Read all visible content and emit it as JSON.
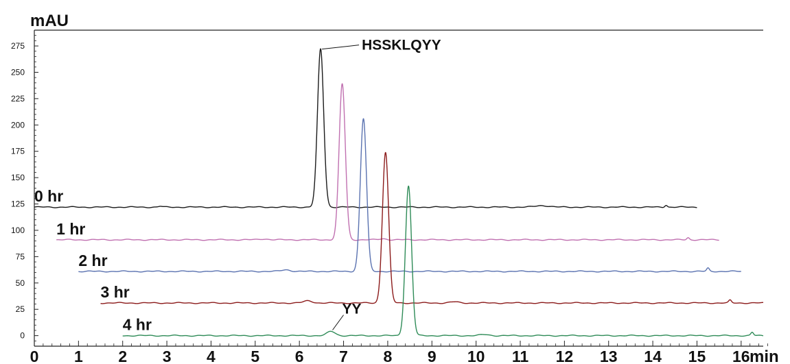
{
  "chart_data": {
    "type": "line",
    "ylabel": "mAU",
    "xlabel": "min",
    "xlim": [
      0,
      16.5
    ],
    "ylim": [
      -10,
      290
    ],
    "x_ticks": [
      0,
      1,
      2,
      3,
      4,
      5,
      6,
      7,
      8,
      9,
      10,
      11,
      12,
      13,
      14,
      15,
      16
    ],
    "y_ticks": [
      0,
      25,
      50,
      75,
      100,
      125,
      150,
      175,
      200,
      225,
      250,
      275
    ],
    "grid": false,
    "legend": "labels on series",
    "series": [
      {
        "name": "0 hr",
        "color": "#1a1a1a",
        "x_start": 0,
        "x_end": 15,
        "baseline": 122,
        "peaks": [
          {
            "x": 6.48,
            "height": 150,
            "width": 0.07
          },
          {
            "x": 2.85,
            "height": 0.8,
            "width": 0.04
          },
          {
            "x": 11.5,
            "height": 1.5,
            "width": 0.15
          },
          {
            "x": 14.3,
            "height": 2.0,
            "width": 0.03
          }
        ]
      },
      {
        "name": "1 hr",
        "color": "#c070b0",
        "x_start": 0.5,
        "x_end": 15.5,
        "baseline": 91,
        "peaks": [
          {
            "x": 6.97,
            "height": 148,
            "width": 0.07
          },
          {
            "x": 5.2,
            "height": 0.8,
            "width": 0.1
          },
          {
            "x": 7.9,
            "height": 1.0,
            "width": 0.08
          },
          {
            "x": 14.8,
            "height": 2.0,
            "width": 0.03
          }
        ]
      },
      {
        "name": "2 hr",
        "color": "#5a72b0",
        "x_start": 1,
        "x_end": 16,
        "baseline": 61,
        "peaks": [
          {
            "x": 7.45,
            "height": 145,
            "width": 0.07
          },
          {
            "x": 5.7,
            "height": 1.5,
            "width": 0.1
          },
          {
            "x": 15.25,
            "height": 3.0,
            "width": 0.03
          }
        ]
      },
      {
        "name": "3 hr",
        "color": "#8b1a1a",
        "x_start": 1.5,
        "x_end": 16.5,
        "baseline": 31,
        "peaks": [
          {
            "x": 7.95,
            "height": 143,
            "width": 0.07
          },
          {
            "x": 6.2,
            "height": 2.0,
            "width": 0.1
          },
          {
            "x": 9.5,
            "height": 1.0,
            "width": 0.1
          },
          {
            "x": 15.75,
            "height": 2.5,
            "width": 0.03
          }
        ]
      },
      {
        "name": "4 hr",
        "color": "#2e8b57",
        "x_start": 2,
        "x_end": 16.5,
        "baseline": 0,
        "peaks": [
          {
            "x": 8.47,
            "height": 142,
            "width": 0.07
          },
          {
            "x": 6.72,
            "height": 4.0,
            "width": 0.09
          },
          {
            "x": 10.2,
            "height": 1.0,
            "width": 0.1
          },
          {
            "x": 16.25,
            "height": 3.0,
            "width": 0.03
          }
        ]
      }
    ],
    "annotations": [
      {
        "text": "HSSKLQYY",
        "x": 6.48,
        "y": 272
      },
      {
        "text": "YY",
        "x": 6.72,
        "y": 4
      }
    ]
  }
}
